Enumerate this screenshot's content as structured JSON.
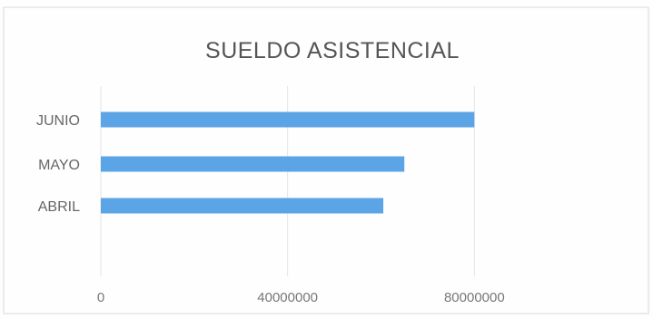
{
  "chart_data": {
    "type": "bar",
    "orientation": "horizontal",
    "title": "SUELDO ASISTENCIAL",
    "categories": [
      "ABRIL",
      "MAYO",
      "JUNIO"
    ],
    "values": [
      60500000,
      65000000,
      80000000
    ],
    "xlim": [
      0,
      120000000
    ],
    "ticks": [
      0,
      40000000,
      80000000
    ],
    "tick_labels": [
      "0",
      "40000000",
      "80000000"
    ],
    "bar_color": "#5ba4e6",
    "grid": true,
    "legend": "none"
  }
}
